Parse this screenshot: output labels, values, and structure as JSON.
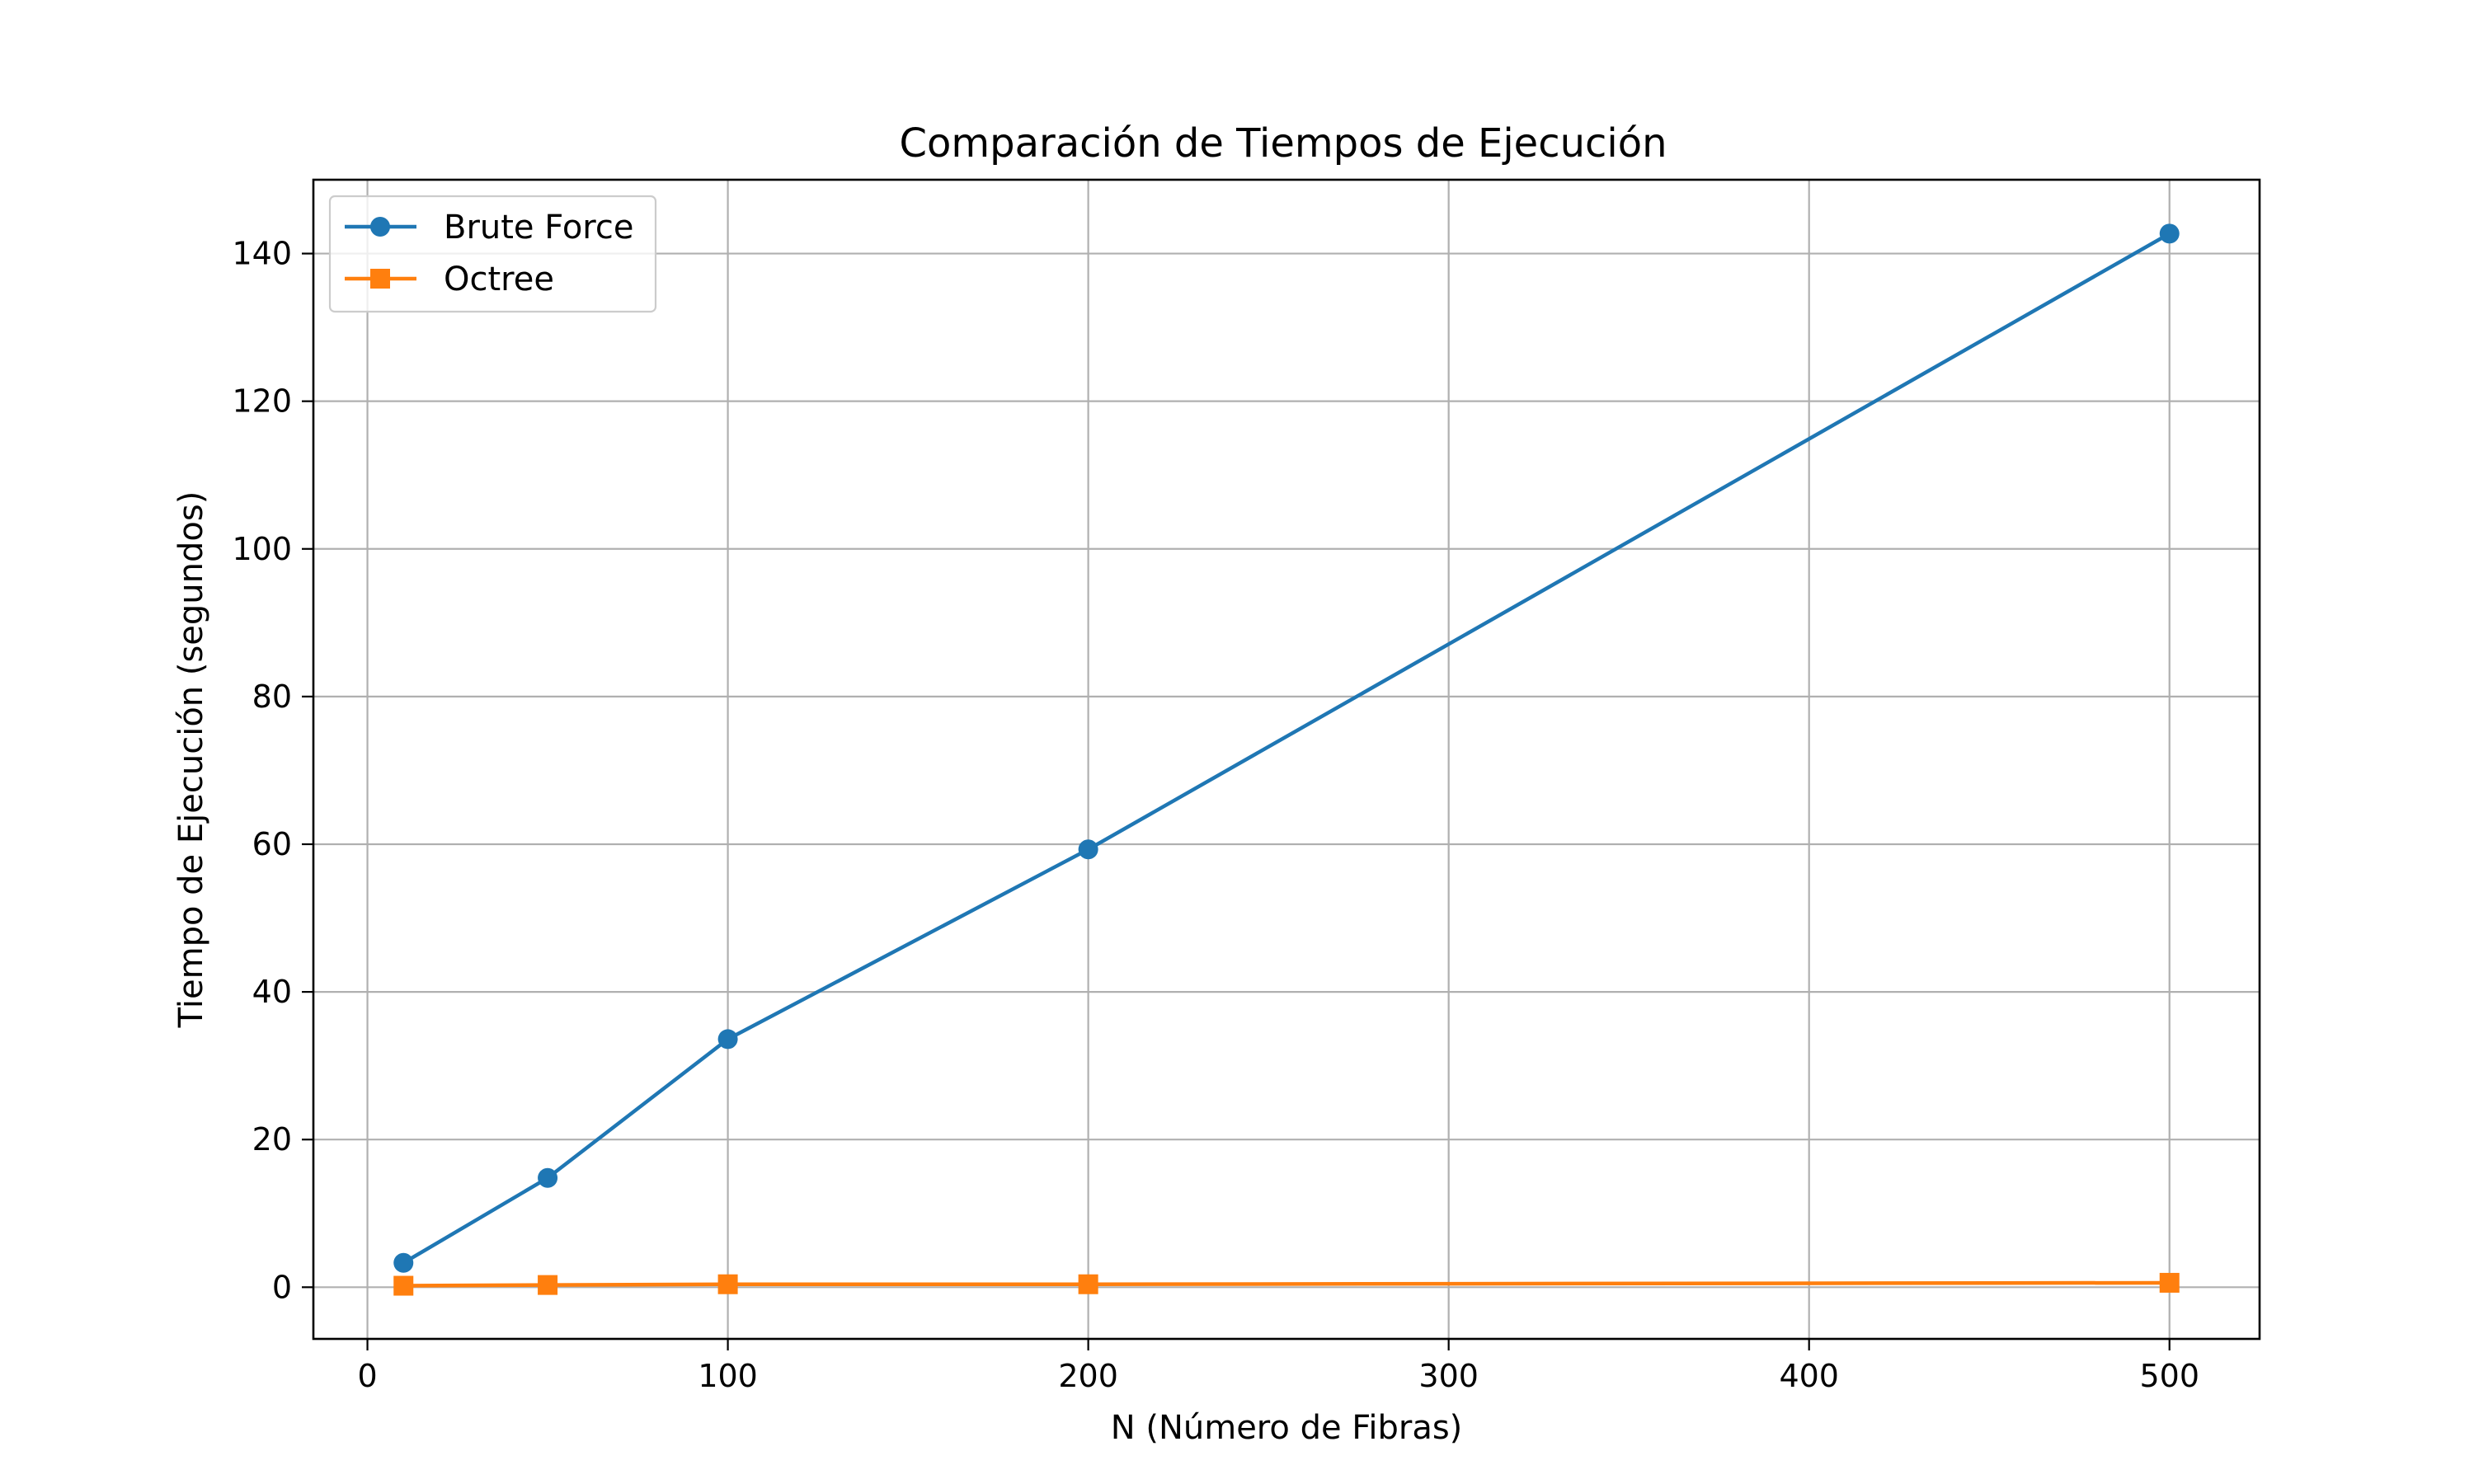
{
  "chart_data": {
    "type": "line",
    "title": "Comparación de Tiempos de Ejecución",
    "xlabel": "N (Número de Fibras)",
    "ylabel": "Tiempo de Ejecución (segundos)",
    "xlim": [
      -15,
      525
    ],
    "ylim": [
      -7,
      150
    ],
    "xticks": [
      0,
      100,
      200,
      300,
      400,
      500
    ],
    "yticks": [
      0,
      20,
      40,
      60,
      80,
      100,
      120,
      140
    ],
    "grid": true,
    "legend_position": "upper-left",
    "series": [
      {
        "name": "Brute Force",
        "color": "#1f77b4",
        "marker": "circle",
        "x": [
          10,
          50,
          100,
          200,
          500
        ],
        "y": [
          3.3,
          14.8,
          33.6,
          59.3,
          142.7
        ]
      },
      {
        "name": "Octree",
        "color": "#ff7f0e",
        "marker": "square",
        "x": [
          10,
          50,
          100,
          200,
          500
        ],
        "y": [
          0.2,
          0.3,
          0.4,
          0.4,
          0.6
        ]
      }
    ]
  }
}
